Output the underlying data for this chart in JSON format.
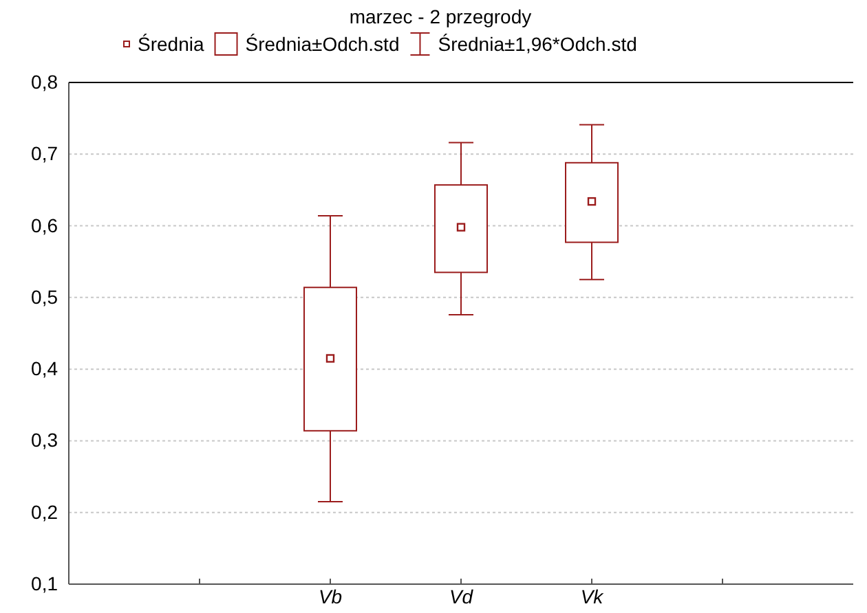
{
  "chart_data": {
    "type": "box",
    "title": "marzec - 2 przegrody",
    "categories": [
      null,
      "Vb",
      "Vd",
      "Vk",
      null
    ],
    "series": [
      {
        "color": "#9b1c1c",
        "boxes": [
          null,
          {
            "low": 0.215,
            "q1": 0.314,
            "median": 0.415,
            "q3": 0.514,
            "high": 0.614
          },
          {
            "low": 0.476,
            "q1": 0.535,
            "median": 0.598,
            "q3": 0.657,
            "high": 0.716
          },
          {
            "low": 0.525,
            "q1": 0.577,
            "median": 0.634,
            "q3": 0.688,
            "high": 0.741
          },
          null
        ]
      }
    ],
    "annotations": [
      "Średnia",
      "Średnia±Odch.std",
      "Średnia±1,96*Odch.std"
    ],
    "ylim": [
      0.1,
      0.8
    ],
    "yticks": [
      {
        "value": 0.1,
        "label": "0,1"
      },
      {
        "value": 0.2,
        "label": "0,2"
      },
      {
        "value": 0.3,
        "label": "0,3"
      },
      {
        "value": 0.4,
        "label": "0,4"
      },
      {
        "value": 0.5,
        "label": "0,5"
      },
      {
        "value": 0.6,
        "label": "0,6"
      },
      {
        "value": 0.7,
        "label": "0,7"
      },
      {
        "value": 0.8,
        "label": "0,8"
      }
    ],
    "grid": "y"
  }
}
